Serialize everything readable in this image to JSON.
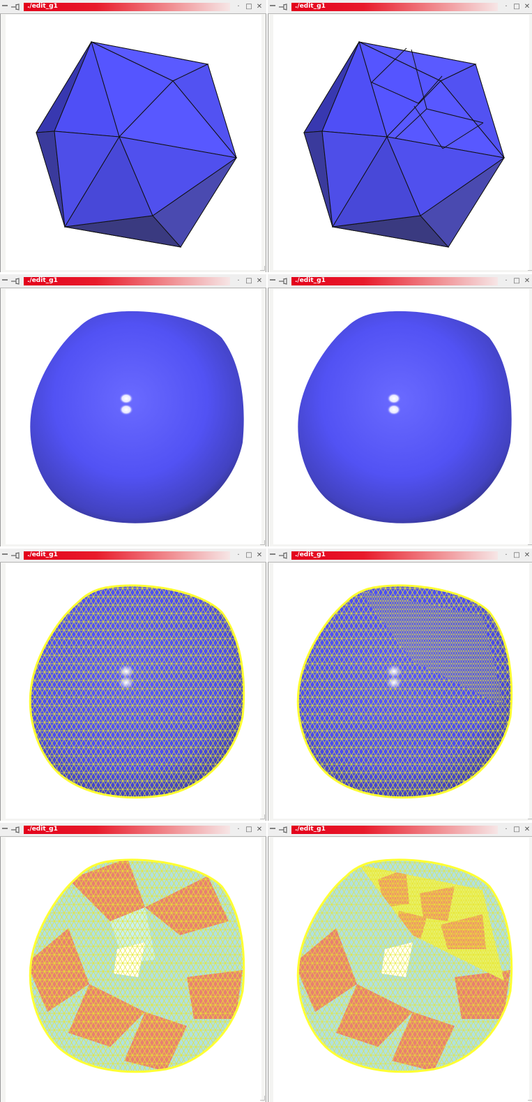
{
  "windows": [
    {
      "title": "./edit_g1",
      "view": "coarse-icosahedron"
    },
    {
      "title": "./edit_g1",
      "view": "locally-refined-icosahedron"
    },
    {
      "title": "./edit_g1",
      "view": "smooth-surface"
    },
    {
      "title": "./edit_g1",
      "view": "smooth-surface-refined"
    },
    {
      "title": "./edit_g1",
      "view": "uniform-wireframe-mesh"
    },
    {
      "title": "./edit_g1",
      "view": "adaptive-wireframe-mesh"
    },
    {
      "title": "./edit_g1",
      "view": "patch-colored-mesh"
    },
    {
      "title": "./edit_g1",
      "view": "patch-colored-adaptive-mesh"
    }
  ],
  "titlebar_icons": {
    "menu": "menu-icon",
    "pin": "pin-icon",
    "minimize": "·",
    "maximize": "□",
    "close": "✕"
  },
  "colors": {
    "surface_blue": "#5050ff",
    "wire_yellow": "#ffff33",
    "patch_salmon": "#f08070",
    "patch_cyan": "#b8f0f0",
    "title_red": "#e3001b"
  }
}
